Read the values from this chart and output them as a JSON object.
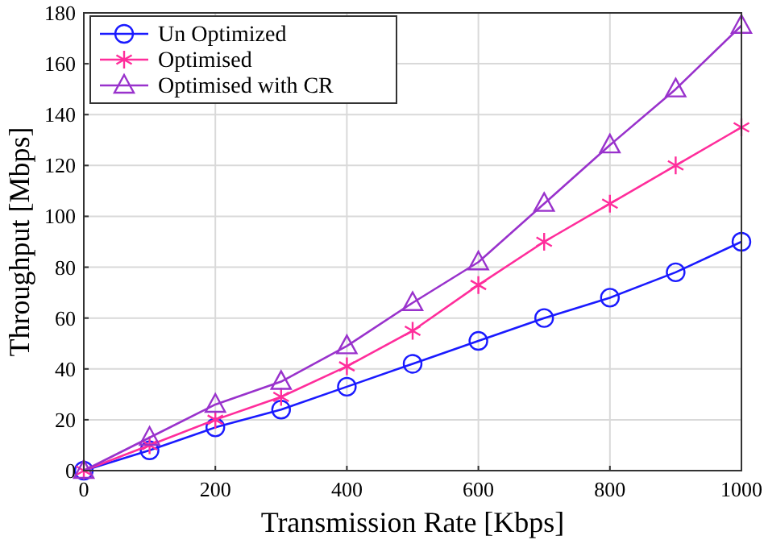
{
  "chart_data": {
    "type": "line",
    "xlabel": "Transmission Rate [Kbps]",
    "ylabel": "Throughput [Mbps]",
    "x": [
      0,
      100,
      200,
      300,
      400,
      500,
      600,
      700,
      800,
      900,
      1000
    ],
    "series": [
      {
        "name": "Un Optimized",
        "color": "#1a1aff",
        "marker": "circle",
        "values": [
          0,
          8,
          17,
          24,
          33,
          42,
          51,
          60,
          68,
          78,
          90
        ]
      },
      {
        "name": "Optimised",
        "color": "#ff2d9b",
        "marker": "cross",
        "values": [
          0,
          10,
          20,
          29,
          41,
          55,
          73,
          90,
          105,
          120,
          135
        ]
      },
      {
        "name": "Optimised with CR",
        "color": "#9932cc",
        "marker": "triangle",
        "values": [
          0,
          13,
          26,
          35,
          49,
          66,
          82,
          105,
          128,
          150,
          175
        ]
      }
    ],
    "xlim": [
      0,
      1000
    ],
    "xticks": [
      0,
      200,
      400,
      600,
      800,
      1000
    ],
    "ylim": [
      0,
      180
    ],
    "yticks": [
      0,
      20,
      40,
      60,
      80,
      100,
      120,
      140,
      160,
      180
    ],
    "grid": true,
    "legend": "top left"
  }
}
